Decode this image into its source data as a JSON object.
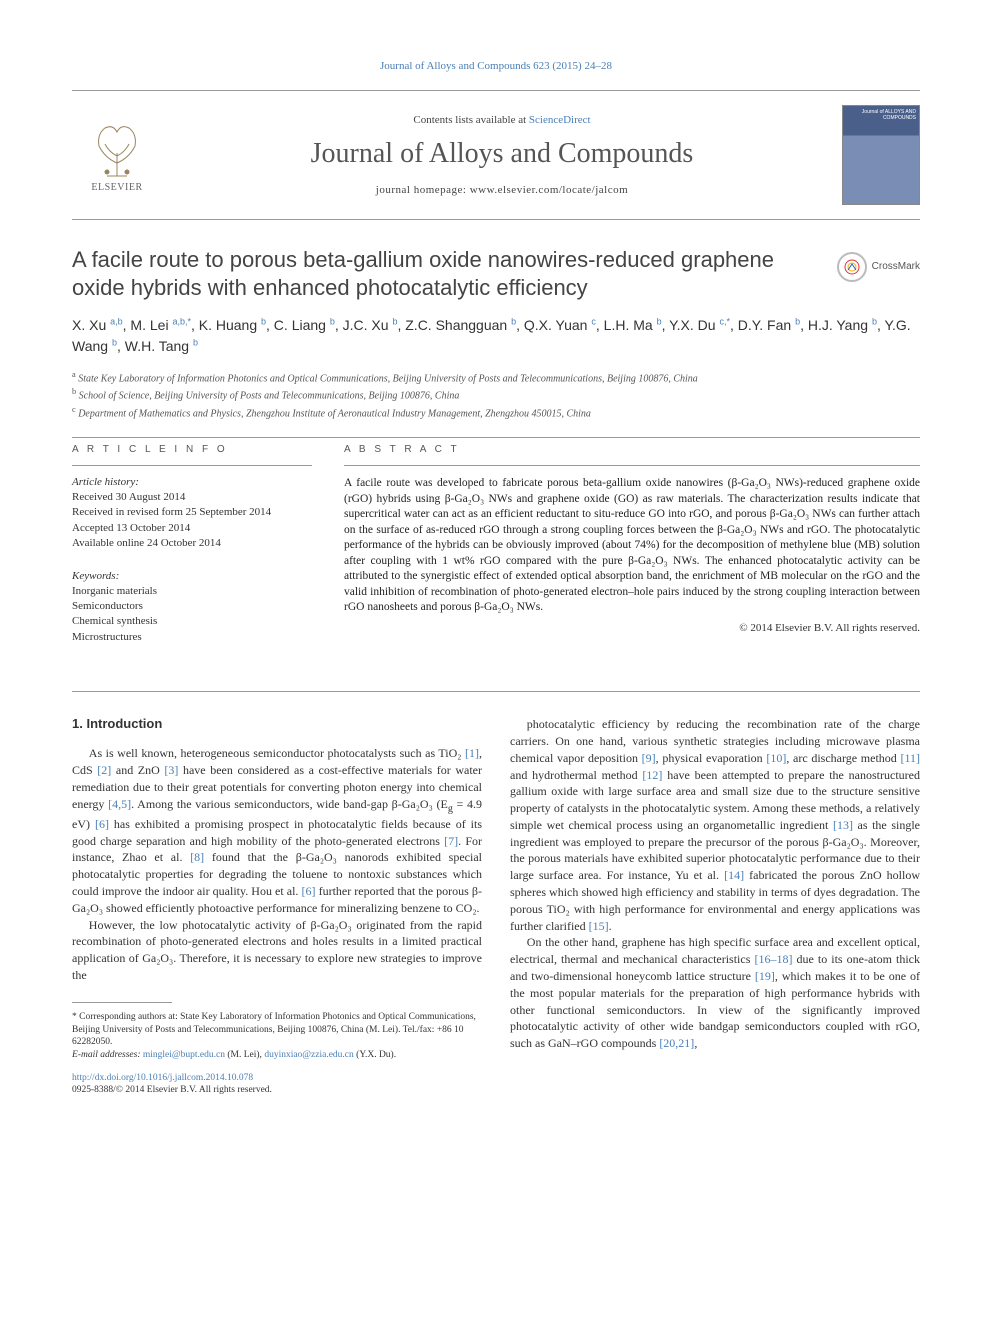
{
  "journal_ref": "Journal of Alloys and Compounds 623 (2015) 24–28",
  "masthead": {
    "contents_prefix": "Contents lists available at ",
    "contents_link": "ScienceDirect",
    "journal_name": "Journal of Alloys and Compounds",
    "homepage_prefix": "journal homepage: ",
    "homepage_url": "www.elsevier.com/locate/jalcom",
    "publisher": "ELSEVIER",
    "cover_title": "Journal of\nALLOYS\nAND COMPOUNDS"
  },
  "crossmark": "CrossMark",
  "title": "A facile route to porous beta-gallium oxide nanowires-reduced graphene oxide hybrids with enhanced photocatalytic efficiency",
  "authors_html": "X. Xu <sup>a,b</sup>, M. Lei <sup>a,b,*</sup>, K. Huang <sup>b</sup>, C. Liang <sup>b</sup>, J.C. Xu <sup>b</sup>, Z.C. Shangguan <sup>b</sup>, Q.X. Yuan <sup>c</sup>, L.H. Ma <sup>b</sup>, Y.X. Du <sup>c,*</sup>, D.Y. Fan <sup>b</sup>, H.J. Yang <sup>b</sup>, Y.G. Wang <sup>b</sup>, W.H. Tang <sup>b</sup>",
  "affiliations": [
    "a State Key Laboratory of Information Photonics and Optical Communications, Beijing University of Posts and Telecommunications, Beijing 100876, China",
    "b School of Science, Beijing University of Posts and Telecommunications, Beijing 100876, China",
    "c Department of Mathematics and Physics, Zhengzhou Institute of Aeronautical Industry Management, Zhengzhou 450015, China"
  ],
  "article_info": {
    "head": "A R T I C L E   I N F O",
    "history_label": "Article history:",
    "history": [
      "Received 30 August 2014",
      "Received in revised form 25 September 2014",
      "Accepted 13 October 2014",
      "Available online 24 October 2014"
    ],
    "keywords_label": "Keywords:",
    "keywords": [
      "Inorganic materials",
      "Semiconductors",
      "Chemical synthesis",
      "Microstructures"
    ]
  },
  "abstract": {
    "head": "A B S T R A C T",
    "text": "A facile route was developed to fabricate porous beta-gallium oxide nanowires (β-Ga₂O₃ NWs)-reduced graphene oxide (rGO) hybrids using β-Ga₂O₃ NWs and graphene oxide (GO) as raw materials. The characterization results indicate that supercritical water can act as an efficient reductant to situ-reduce GO into rGO, and porous β-Ga₂O₃ NWs can further attach on the surface of as-reduced rGO through a strong coupling forces between the β-Ga₂O₃ NWs and rGO. The photocatalytic performance of the hybrids can be obviously improved (about 74%) for the decomposition of methylene blue (MB) solution after coupling with 1 wt% rGO compared with the pure β-Ga₂O₃ NWs. The enhanced photocatalytic activity can be attributed to the synergistic effect of extended optical absorption band, the enrichment of MB molecular on the rGO and the valid inhibition of recombination of photo-generated electron–hole pairs induced by the strong coupling interaction between rGO nanosheets and porous β-Ga₂O₃ NWs.",
    "copyright": "© 2014 Elsevier B.V. All rights reserved."
  },
  "intro_head": "1. Introduction",
  "body_left": [
    "As is well known, heterogeneous semiconductor photocatalysts such as TiO₂ <span class='ref-link'>[1]</span>, CdS <span class='ref-link'>[2]</span> and ZnO <span class='ref-link'>[3]</span> have been considered as a cost-effective materials for water remediation due to their great potentials for converting photon energy into chemical energy <span class='ref-link'>[4,5]</span>. Among the various semiconductors, wide band-gap β-Ga₂O₃ (E<sub>g</sub> = 4.9 eV) <span class='ref-link'>[6]</span> has exhibited a promising prospect in photocatalytic fields because of its good charge separation and high mobility of the photo-generated electrons <span class='ref-link'>[7]</span>. For instance, Zhao et al. <span class='ref-link'>[8]</span> found that the β-Ga₂O₃ nanorods exhibited special photocatalytic properties for degrading the toluene to nontoxic substances which could improve the indoor air quality. Hou et al. <span class='ref-link'>[6]</span> further reported that the porous β-Ga₂O₃ showed efficiently photoactive performance for mineralizing benzene to CO₂.",
    "However, the low photocatalytic activity of β-Ga₂O₃ originated from the rapid recombination of photo-generated electrons and holes results in a limited practical application of Ga₂O₃. Therefore, it is necessary to explore new strategies to improve the"
  ],
  "body_right": [
    "photocatalytic efficiency by reducing the recombination rate of the charge carriers. On one hand, various synthetic strategies including microwave plasma chemical vapor deposition <span class='ref-link'>[9]</span>, physical evaporation <span class='ref-link'>[10]</span>, arc discharge method <span class='ref-link'>[11]</span> and hydrothermal method <span class='ref-link'>[12]</span> have been attempted to prepare the nanostructured gallium oxide with large surface area and small size due to the structure sensitive property of catalysts in the photocatalytic system. Among these methods, a relatively simple wet chemical process using an organometallic ingredient <span class='ref-link'>[13]</span> as the single ingredient was employed to prepare the precursor of the porous β-Ga₂O₃. Moreover, the porous materials have exhibited superior photocatalytic performance due to their large surface area. For instance, Yu et al. <span class='ref-link'>[14]</span> fabricated the porous ZnO hollow spheres which showed high efficiency and stability in terms of dyes degradation. The porous TiO₂ with high performance for environmental and energy applications was further clarified <span class='ref-link'>[15]</span>.",
    "On the other hand, graphene has high specific surface area and excellent optical, electrical, thermal and mechanical characteristics <span class='ref-link'>[16–18]</span> due to its one-atom thick and two-dimensional honeycomb lattice structure <span class='ref-link'>[19]</span>, which makes it to be one of the most popular materials for the preparation of high performance hybrids with other functional semiconductors. In view of the significantly improved photocatalytic activity of other wide bandgap semiconductors coupled with rGO, such as GaN–rGO compounds <span class='ref-link'>[20,21]</span>,"
  ],
  "footnote": {
    "corr": "* Corresponding authors at: State Key Laboratory of Information Photonics and Optical Communications, Beijing University of Posts and Telecommunications, Beijing 100876, China (M. Lei). Tel./fax: +86 10 62282050.",
    "email_label": "E-mail addresses:",
    "email1": "minglei@bupt.edu.cn",
    "email1_who": "(M. Lei),",
    "email2": "duyinxiao@zzia.edu.cn",
    "email2_who": "(Y.X. Du)."
  },
  "bottom": {
    "doi": "http://dx.doi.org/10.1016/j.jallcom.2014.10.078",
    "issn": "0925-8388/© 2014 Elsevier B.V. All rights reserved."
  },
  "colors": {
    "link": "#4a7fb5",
    "rule": "#999999",
    "cover_top": "#4a5f8a",
    "cover_bottom": "#7a8eb5"
  }
}
